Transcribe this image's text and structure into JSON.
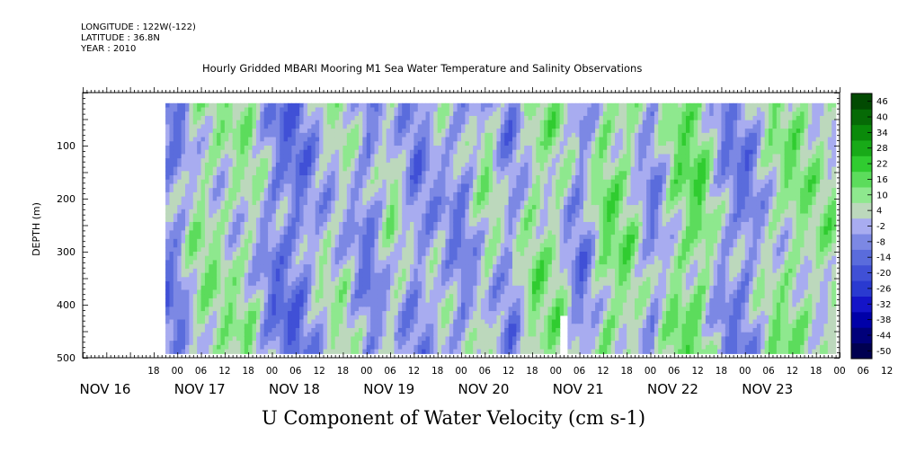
{
  "header": {
    "longitude": "LONGITUDE : 122W(-122)",
    "latitude": "LATITUDE : 36.8N",
    "year": "YEAR : 2010"
  },
  "chart_data": {
    "type": "heatmap",
    "title": "Hourly Gridded MBARI Mooring M1 Sea Water Temperature and Salinity Observations",
    "xlabel": "U Component of Water Velocity (cm s-1)",
    "ylabel": "DEPTH (m)",
    "ylim": [
      500,
      0
    ],
    "y_ticks": [
      100,
      200,
      300,
      400,
      500
    ],
    "x_hour_ticks": [
      "18",
      "00",
      "06",
      "12",
      "18",
      "00",
      "06",
      "12",
      "18",
      "00",
      "06",
      "12",
      "18",
      "00",
      "06",
      "12",
      "18",
      "00",
      "06",
      "12",
      "18",
      "00",
      "06",
      "12",
      "18",
      "00",
      "06",
      "12",
      "18",
      "00",
      "06",
      "12"
    ],
    "x_date_labels": [
      "NOV 16",
      "NOV 17",
      "NOV 18",
      "NOV 19",
      "NOV 20",
      "NOV 21",
      "NOV 22",
      "NOV 23"
    ],
    "data_time_range": [
      "NOV 16 21:00",
      "NOV 23 23:00"
    ],
    "data_depth_range": [
      20,
      485
    ],
    "missing_region": {
      "time": [
        "NOV 21 01:00",
        "NOV 21 03:00"
      ],
      "depth": [
        415,
        485
      ]
    },
    "colorbar": {
      "levels": [
        -50,
        -44,
        -38,
        -32,
        -26,
        -20,
        -14,
        -8,
        -2,
        4,
        10,
        16,
        22,
        28,
        34,
        40,
        46
      ],
      "labels": [
        "46",
        "40",
        "34",
        "28",
        "22",
        "16",
        "10",
        "4",
        "-2",
        "-8",
        "-14",
        "-20",
        "-26",
        "-32",
        "-38",
        "-44",
        "-50"
      ],
      "colors": [
        "#000050",
        "#00007a",
        "#0000a8",
        "#1414c8",
        "#2a3ad0",
        "#4050d6",
        "#5a6cdc",
        "#7c88e4",
        "#a8acf0",
        "#bcd8bc",
        "#8ee88e",
        "#5cdc5c",
        "#30cc30",
        "#18aa18",
        "#0a8a0a",
        "#066a06",
        "#024a02"
      ]
    },
    "column_profile": [
      {
        "day": "NOV 16",
        "hour": 21,
        "u": -5
      },
      {
        "day": "NOV 17",
        "hour": 0,
        "u": -4
      },
      {
        "day": "NOV 17",
        "hour": 3,
        "u": 6
      },
      {
        "day": "NOV 17",
        "hour": 6,
        "u": 10
      },
      {
        "day": "NOV 17",
        "hour": 12,
        "u": 8
      },
      {
        "day": "NOV 17",
        "hour": 18,
        "u": 9
      },
      {
        "day": "NOV 18",
        "hour": 0,
        "u": -6
      },
      {
        "day": "NOV 18",
        "hour": 6,
        "u": -8
      },
      {
        "day": "NOV 18",
        "hour": 12,
        "u": 3
      },
      {
        "day": "NOV 18",
        "hour": 18,
        "u": 6
      },
      {
        "day": "NOV 19",
        "hour": 0,
        "u": -6
      },
      {
        "day": "NOV 19",
        "hour": 6,
        "u": 8
      },
      {
        "day": "NOV 19",
        "hour": 12,
        "u": -5
      },
      {
        "day": "NOV 19",
        "hour": 18,
        "u": 2
      },
      {
        "day": "NOV 20",
        "hour": 0,
        "u": -4
      },
      {
        "day": "NOV 20",
        "hour": 6,
        "u": 9
      },
      {
        "day": "NOV 20",
        "hour": 12,
        "u": -4
      },
      {
        "day": "NOV 20",
        "hour": 18,
        "u": 12
      },
      {
        "day": "NOV 21",
        "hour": 0,
        "u": 10
      },
      {
        "day": "NOV 21",
        "hour": 6,
        "u": -6
      },
      {
        "day": "NOV 21",
        "hour": 12,
        "u": 14
      },
      {
        "day": "NOV 21",
        "hour": 18,
        "u": 12
      },
      {
        "day": "NOV 22",
        "hour": 0,
        "u": -4
      },
      {
        "day": "NOV 22",
        "hour": 6,
        "u": 13
      },
      {
        "day": "NOV 22",
        "hour": 12,
        "u": 16
      },
      {
        "day": "NOV 22",
        "hour": 18,
        "u": -2
      },
      {
        "day": "NOV 23",
        "hour": 0,
        "u": -5
      },
      {
        "day": "NOV 23",
        "hour": 6,
        "u": 8
      },
      {
        "day": "NOV 23",
        "hour": 12,
        "u": 12
      },
      {
        "day": "NOV 23",
        "hour": 18,
        "u": 9
      }
    ]
  }
}
